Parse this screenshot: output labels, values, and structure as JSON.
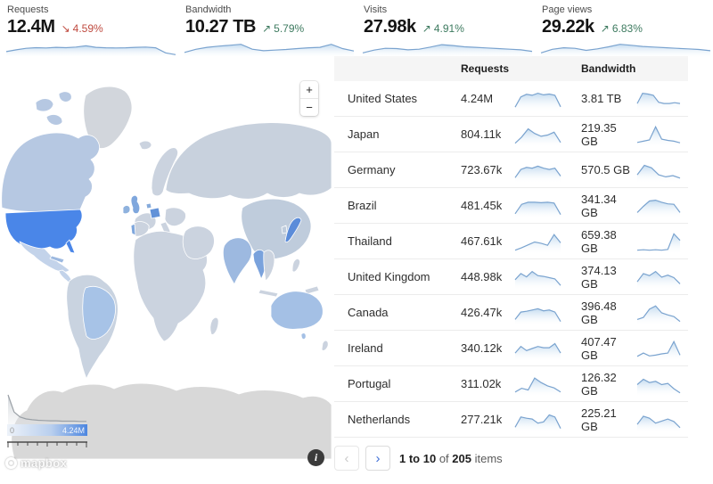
{
  "stats": [
    {
      "label": "Requests",
      "value": "12.4M",
      "trend": "down",
      "trend_icon": "↘",
      "change": "4.59%",
      "spark": [
        0.3,
        0.42,
        0.52,
        0.56,
        0.54,
        0.58,
        0.56,
        0.6,
        0.68,
        0.58,
        0.55,
        0.54,
        0.55,
        0.58,
        0.6,
        0.55,
        0.22,
        0.1
      ]
    },
    {
      "label": "Bandwidth",
      "value": "10.27 TB",
      "trend": "up",
      "trend_icon": "↗",
      "change": "5.79%",
      "spark": [
        0.25,
        0.45,
        0.58,
        0.66,
        0.72,
        0.78,
        0.46,
        0.36,
        0.4,
        0.44,
        0.5,
        0.55,
        0.58,
        0.78,
        0.5,
        0.34
      ]
    },
    {
      "label": "Visits",
      "value": "27.98k",
      "trend": "up",
      "trend_icon": "↗",
      "change": "4.91%",
      "spark": [
        0.22,
        0.4,
        0.52,
        0.5,
        0.42,
        0.46,
        0.6,
        0.76,
        0.7,
        0.62,
        0.58,
        0.54,
        0.5,
        0.46,
        0.42,
        0.32
      ]
    },
    {
      "label": "Page views",
      "value": "29.22k",
      "trend": "up",
      "trend_icon": "↗",
      "change": "6.83%",
      "spark": [
        0.22,
        0.45,
        0.55,
        0.52,
        0.38,
        0.48,
        0.62,
        0.78,
        0.72,
        0.64,
        0.6,
        0.56,
        0.52,
        0.48,
        0.44,
        0.36
      ]
    }
  ],
  "map": {
    "zoom_in": "+",
    "zoom_out": "−",
    "info": "i",
    "attribution": "mapbox",
    "legend": {
      "min": "0",
      "max": "4.24M",
      "histogram": [
        1,
        0.38,
        0.2,
        0.13,
        0.1,
        0.08,
        0.07,
        0.06,
        0.06,
        0.05,
        0.05,
        0.05,
        0.04,
        0.04
      ]
    },
    "colors": {
      "ocean": "#ffffff",
      "land": "#cbd3df",
      "greenland": "#d2d6dc",
      "antarctica": "#d8d8d8",
      "us": "#4a86e8",
      "canada": "#b6c8e2",
      "mexico": "#c3d3ea",
      "cuba": "#9db9e0",
      "south_america": "#c9d3e0",
      "brazil": "#a7c3e7",
      "uk": "#7fa7dd",
      "ireland": "#8fb2de",
      "germany": "#6292d8",
      "netherlands": "#86abdb",
      "portugal": "#7fa7dd",
      "russia": "#c8d1dd",
      "china": "#bfccdc",
      "india": "#9db9e0",
      "thailand": "#7aa2dc",
      "japan": "#5b8cd9",
      "australia": "#a4c0e5",
      "spark_line": "#7aa3cf",
      "spark_fill": "#bcd7ee"
    }
  },
  "table": {
    "columns": [
      "Requests",
      "Bandwidth"
    ],
    "rows": [
      {
        "country": "United States",
        "requests": "4.24M",
        "bandwidth": "3.81 TB",
        "requests_spark": [
          0.12,
          0.62,
          0.75,
          0.7,
          0.8,
          0.72,
          0.76,
          0.7,
          0.14
        ],
        "bandwidth_spark": [
          0.3,
          0.8,
          0.76,
          0.7,
          0.36,
          0.3,
          0.3,
          0.34,
          0.3
        ]
      },
      {
        "country": "Japan",
        "requests": "804.11k",
        "bandwidth": "219.35 GB",
        "requests_spark": [
          0.1,
          0.4,
          0.8,
          0.58,
          0.44,
          0.5,
          0.64,
          0.14
        ],
        "bandwidth_spark": [
          0.14,
          0.2,
          0.26,
          0.9,
          0.3,
          0.24,
          0.2,
          0.12
        ]
      },
      {
        "country": "Germany",
        "requests": "723.67k",
        "bandwidth": "570.5 GB",
        "requests_spark": [
          0.16,
          0.56,
          0.66,
          0.62,
          0.72,
          0.62,
          0.56,
          0.62,
          0.24
        ],
        "bandwidth_spark": [
          0.3,
          0.76,
          0.64,
          0.3,
          0.2,
          0.26,
          0.14
        ]
      },
      {
        "country": "Brazil",
        "requests": "481.45k",
        "bandwidth": "341.34 GB",
        "requests_spark": [
          0.14,
          0.6,
          0.7,
          0.7,
          0.68,
          0.7,
          0.66,
          0.1
        ],
        "bandwidth_spark": [
          0.2,
          0.5,
          0.76,
          0.8,
          0.7,
          0.62,
          0.6,
          0.2
        ]
      },
      {
        "country": "Thailand",
        "requests": "467.61k",
        "bandwidth": "659.38 GB",
        "requests_spark": [
          0.1,
          0.22,
          0.36,
          0.5,
          0.44,
          0.34,
          0.86,
          0.46
        ],
        "bandwidth_spark": [
          0.1,
          0.12,
          0.1,
          0.12,
          0.1,
          0.14,
          0.9,
          0.58
        ]
      },
      {
        "country": "United Kingdom",
        "requests": "448.98k",
        "bandwidth": "374.13 GB",
        "requests_spark": [
          0.4,
          0.7,
          0.54,
          0.8,
          0.6,
          0.56,
          0.5,
          0.44,
          0.12
        ],
        "bandwidth_spark": [
          0.3,
          0.7,
          0.6,
          0.8,
          0.52,
          0.62,
          0.5,
          0.2
        ]
      },
      {
        "country": "Canada",
        "requests": "426.47k",
        "bandwidth": "396.48 GB",
        "requests_spark": [
          0.2,
          0.56,
          0.6,
          0.66,
          0.72,
          0.62,
          0.66,
          0.56,
          0.1
        ],
        "bandwidth_spark": [
          0.2,
          0.3,
          0.7,
          0.86,
          0.52,
          0.42,
          0.34,
          0.1
        ]
      },
      {
        "country": "Ireland",
        "requests": "340.12k",
        "bandwidth": "407.47 GB",
        "requests_spark": [
          0.3,
          0.62,
          0.42,
          0.52,
          0.62,
          0.56,
          0.56,
          0.76,
          0.3
        ],
        "bandwidth_spark": [
          0.14,
          0.3,
          0.16,
          0.2,
          0.26,
          0.3,
          0.86,
          0.2
        ]
      },
      {
        "country": "Portugal",
        "requests": "311.02k",
        "bandwidth": "126.32 GB",
        "requests_spark": [
          0.14,
          0.32,
          0.24,
          0.82,
          0.6,
          0.44,
          0.34,
          0.14
        ],
        "bandwidth_spark": [
          0.5,
          0.76,
          0.6,
          0.66,
          0.5,
          0.56,
          0.3,
          0.1
        ]
      },
      {
        "country": "Netherlands",
        "requests": "277.21k",
        "bandwidth": "225.21 GB",
        "requests_spark": [
          0.16,
          0.66,
          0.6,
          0.56,
          0.36,
          0.42,
          0.76,
          0.66,
          0.1
        ],
        "bandwidth_spark": [
          0.3,
          0.7,
          0.6,
          0.36,
          0.46,
          0.56,
          0.44,
          0.14
        ]
      }
    ]
  },
  "pagination": {
    "prev": "‹",
    "next": "›",
    "range": "1 to 10",
    "of": "of",
    "total": "205",
    "items": "items"
  }
}
